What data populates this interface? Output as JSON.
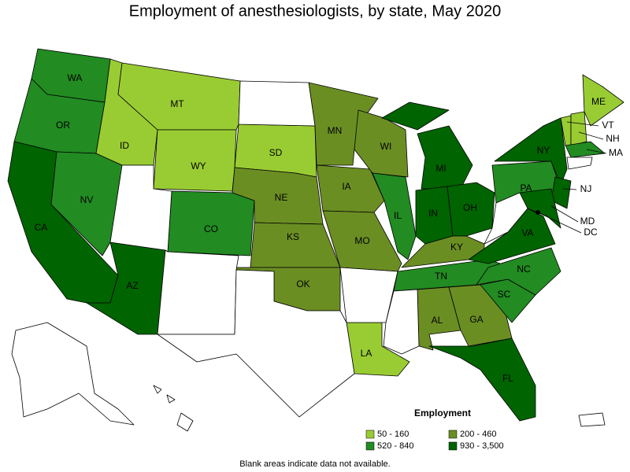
{
  "title": "Employment of anesthesiologists, by state, May 2020",
  "states": [
    {
      "abbr": "WA",
      "color": "#228b22"
    },
    {
      "abbr": "OR",
      "color": "#228b22"
    },
    {
      "abbr": "CA",
      "color": "#006400"
    },
    {
      "abbr": "NV",
      "color": "#228b22"
    },
    {
      "abbr": "ID",
      "color": "#99cc33"
    },
    {
      "abbr": "MT",
      "color": "#99cc33"
    },
    {
      "abbr": "WY",
      "color": "#99cc33"
    },
    {
      "abbr": "CO",
      "color": "#228b22"
    },
    {
      "abbr": "AZ",
      "color": "#006400"
    },
    {
      "abbr": "SD",
      "color": "#99cc33"
    },
    {
      "abbr": "NE",
      "color": "#6b8e23"
    },
    {
      "abbr": "KS",
      "color": "#6b8e23"
    },
    {
      "abbr": "OK",
      "color": "#6b8e23"
    },
    {
      "abbr": "MN",
      "color": "#6b8e23"
    },
    {
      "abbr": "IA",
      "color": "#6b8e23"
    },
    {
      "abbr": "MO",
      "color": "#6b8e23"
    },
    {
      "abbr": "LA",
      "color": "#99cc33"
    },
    {
      "abbr": "WI",
      "color": "#6b8e23"
    },
    {
      "abbr": "IL",
      "color": "#228b22"
    },
    {
      "abbr": "MI",
      "color": "#006400"
    },
    {
      "abbr": "IN",
      "color": "#006400"
    },
    {
      "abbr": "OH",
      "color": "#006400"
    },
    {
      "abbr": "KY",
      "color": "#6b8e23"
    },
    {
      "abbr": "TN",
      "color": "#228b22"
    },
    {
      "abbr": "AL",
      "color": "#6b8e23"
    },
    {
      "abbr": "GA",
      "color": "#6b8e23"
    },
    {
      "abbr": "FL",
      "color": "#006400"
    },
    {
      "abbr": "SC",
      "color": "#228b22"
    },
    {
      "abbr": "NC",
      "color": "#228b22"
    },
    {
      "abbr": "VA",
      "color": "#006400"
    },
    {
      "abbr": "PA",
      "color": "#228b22"
    },
    {
      "abbr": "NY",
      "color": "#006400"
    },
    {
      "abbr": "ME",
      "color": "#99cc33"
    },
    {
      "abbr": "VT",
      "color": "#99cc33"
    },
    {
      "abbr": "NH",
      "color": "#99cc33"
    },
    {
      "abbr": "MA",
      "color": "#228b22"
    },
    {
      "abbr": "NJ",
      "color": "#006400"
    },
    {
      "abbr": "MD",
      "color": "#006400"
    },
    {
      "abbr": "DC",
      "color": "#000000"
    }
  ],
  "legend": {
    "title": "Employment",
    "items": [
      {
        "label": "50 - 160",
        "color": "#99cc33"
      },
      {
        "label": "200 - 460",
        "color": "#6b8e23"
      },
      {
        "label": "520 - 840",
        "color": "#228b22"
      },
      {
        "label": "930 - 3,500",
        "color": "#006400"
      }
    ]
  },
  "note": "Blank areas indicate data not available."
}
